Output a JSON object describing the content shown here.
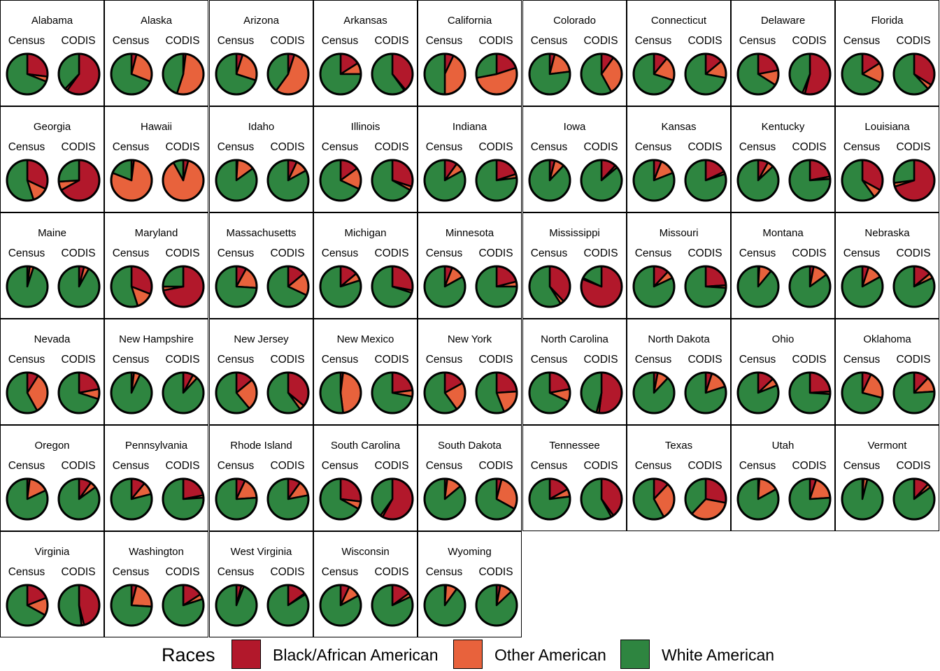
{
  "chart_data": {
    "type": "pie",
    "panel_labels": [
      "Census",
      "CODIS"
    ],
    "legend": {
      "title": "Races",
      "entries": [
        {
          "key": "black",
          "label": "Black/African American",
          "color": "#B2182B"
        },
        {
          "key": "other",
          "label": "Other American",
          "color": "#E8623C"
        },
        {
          "key": "white",
          "label": "White American",
          "color": "#2E8540"
        }
      ]
    },
    "slice_order": [
      "black",
      "other",
      "white"
    ],
    "states": [
      {
        "name": "Alabama",
        "census": {
          "black": 27,
          "other": 4,
          "white": 69
        },
        "codis": {
          "black": 60,
          "other": 2,
          "white": 38
        }
      },
      {
        "name": "Alaska",
        "census": {
          "black": 4,
          "other": 27,
          "white": 69
        },
        "codis": {
          "black": 2,
          "other": 53,
          "white": 45
        }
      },
      {
        "name": "Arizona",
        "census": {
          "black": 5,
          "other": 25,
          "white": 70
        },
        "codis": {
          "black": 5,
          "other": 55,
          "white": 40
        }
      },
      {
        "name": "Arkansas",
        "census": {
          "black": 16,
          "other": 9,
          "white": 75
        },
        "codis": {
          "black": 39,
          "other": 1,
          "white": 60
        }
      },
      {
        "name": "California",
        "census": {
          "black": 7,
          "other": 43,
          "white": 50
        },
        "codis": {
          "black": 20,
          "other": 52,
          "white": 28
        }
      },
      {
        "name": "Colorado",
        "census": {
          "black": 4,
          "other": 19,
          "white": 77
        },
        "codis": {
          "black": 10,
          "other": 32,
          "white": 58
        }
      },
      {
        "name": "Connecticut",
        "census": {
          "black": 11,
          "other": 19,
          "white": 70
        },
        "codis": {
          "black": 14,
          "other": 14,
          "white": 72
        }
      },
      {
        "name": "Delaware",
        "census": {
          "black": 22,
          "other": 12,
          "white": 66
        },
        "codis": {
          "black": 54,
          "other": 2,
          "white": 44
        }
      },
      {
        "name": "Florida",
        "census": {
          "black": 16,
          "other": 16,
          "white": 68
        },
        "codis": {
          "black": 34,
          "other": 4,
          "white": 62
        }
      },
      {
        "name": "Georgia",
        "census": {
          "black": 32,
          "other": 13,
          "white": 55
        },
        "codis": {
          "black": 67,
          "other": 7,
          "white": 26
        }
      },
      {
        "name": "Hawaii",
        "census": {
          "black": 2,
          "other": 79,
          "white": 19
        },
        "codis": {
          "black": 4,
          "other": 88,
          "white": 8
        }
      },
      {
        "name": "Idaho",
        "census": {
          "black": 1,
          "other": 14,
          "white": 85
        },
        "codis": {
          "black": 7,
          "other": 10,
          "white": 83
        }
      },
      {
        "name": "Illinois",
        "census": {
          "black": 15,
          "other": 17,
          "white": 68
        },
        "codis": {
          "black": 30,
          "other": 3,
          "white": 67
        }
      },
      {
        "name": "Indiana",
        "census": {
          "black": 10,
          "other": 7,
          "white": 83
        },
        "codis": {
          "black": 20,
          "other": 3,
          "white": 77
        }
      },
      {
        "name": "Iowa",
        "census": {
          "black": 4,
          "other": 8,
          "white": 88
        },
        "codis": {
          "black": 12,
          "other": 2,
          "white": 86
        }
      },
      {
        "name": "Kansas",
        "census": {
          "black": 6,
          "other": 13,
          "white": 81
        },
        "codis": {
          "black": 18,
          "other": 2,
          "white": 80
        }
      },
      {
        "name": "Kentucky",
        "census": {
          "black": 8,
          "other": 5,
          "white": 87
        },
        "codis": {
          "black": 22,
          "other": 2,
          "white": 76
        }
      },
      {
        "name": "Louisiana",
        "census": {
          "black": 33,
          "other": 7,
          "white": 60
        },
        "codis": {
          "black": 70,
          "other": 3,
          "white": 27
        }
      },
      {
        "name": "Maine",
        "census": {
          "black": 2,
          "other": 3,
          "white": 95
        },
        "codis": {
          "black": 4,
          "other": 4,
          "white": 92
        }
      },
      {
        "name": "Maryland",
        "census": {
          "black": 31,
          "other": 14,
          "white": 55
        },
        "codis": {
          "black": 72,
          "other": 3,
          "white": 25
        }
      },
      {
        "name": "Massachusetts",
        "census": {
          "black": 8,
          "other": 18,
          "white": 74
        },
        "codis": {
          "black": 14,
          "other": 18,
          "white": 68
        }
      },
      {
        "name": "Michigan",
        "census": {
          "black": 14,
          "other": 6,
          "white": 80
        },
        "codis": {
          "black": 28,
          "other": 2,
          "white": 70
        }
      },
      {
        "name": "Minnesota",
        "census": {
          "black": 6,
          "other": 11,
          "white": 83
        },
        "codis": {
          "black": 21,
          "other": 4,
          "white": 75
        }
      },
      {
        "name": "Mississippi",
        "census": {
          "black": 38,
          "other": 3,
          "white": 59
        },
        "codis": {
          "black": 81,
          "other": 1,
          "white": 18
        }
      },
      {
        "name": "Missouri",
        "census": {
          "black": 12,
          "other": 6,
          "white": 82
        },
        "codis": {
          "black": 24,
          "other": 2,
          "white": 74
        }
      },
      {
        "name": "Montana",
        "census": {
          "black": 1,
          "other": 10,
          "white": 89
        },
        "codis": {
          "black": 3,
          "other": 12,
          "white": 85
        }
      },
      {
        "name": "Nebraska",
        "census": {
          "black": 5,
          "other": 12,
          "white": 83
        },
        "codis": {
          "black": 14,
          "other": 4,
          "white": 82
        }
      },
      {
        "name": "Nevada",
        "census": {
          "black": 9,
          "other": 33,
          "white": 58
        },
        "codis": {
          "black": 22,
          "other": 8,
          "white": 70
        }
      },
      {
        "name": "New Hampshire",
        "census": {
          "black": 2,
          "other": 5,
          "white": 93
        },
        "codis": {
          "black": 8,
          "other": 4,
          "white": 88
        }
      },
      {
        "name": "New Jersey",
        "census": {
          "black": 14,
          "other": 25,
          "white": 61
        },
        "codis": {
          "black": 36,
          "other": 4,
          "white": 60
        }
      },
      {
        "name": "New Mexico",
        "census": {
          "black": 2,
          "other": 46,
          "white": 52
        },
        "codis": {
          "black": 23,
          "other": 5,
          "white": 72
        }
      },
      {
        "name": "New York",
        "census": {
          "black": 17,
          "other": 23,
          "white": 60
        },
        "codis": {
          "black": 24,
          "other": 20,
          "white": 56
        }
      },
      {
        "name": "North Carolina",
        "census": {
          "black": 22,
          "other": 10,
          "white": 68
        },
        "codis": {
          "black": 52,
          "other": 2,
          "white": 46
        }
      },
      {
        "name": "North Dakota",
        "census": {
          "black": 3,
          "other": 9,
          "white": 88
        },
        "codis": {
          "black": 5,
          "other": 15,
          "white": 80
        }
      },
      {
        "name": "Ohio",
        "census": {
          "black": 13,
          "other": 6,
          "white": 81
        },
        "codis": {
          "black": 24,
          "other": 2,
          "white": 74
        }
      },
      {
        "name": "Oklahoma",
        "census": {
          "black": 7,
          "other": 22,
          "white": 71
        },
        "codis": {
          "black": 12,
          "other": 12,
          "white": 76
        }
      },
      {
        "name": "Oregon",
        "census": {
          "black": 2,
          "other": 16,
          "white": 82
        },
        "codis": {
          "black": 10,
          "other": 5,
          "white": 85
        }
      },
      {
        "name": "Pennsylvania",
        "census": {
          "black": 11,
          "other": 10,
          "white": 79
        },
        "codis": {
          "black": 22,
          "other": 2,
          "white": 76
        }
      },
      {
        "name": "Rhode Island",
        "census": {
          "black": 7,
          "other": 17,
          "white": 76
        },
        "codis": {
          "black": 10,
          "other": 12,
          "white": 78
        }
      },
      {
        "name": "South Carolina",
        "census": {
          "black": 27,
          "other": 6,
          "white": 67
        },
        "codis": {
          "black": 58,
          "other": 2,
          "white": 40
        }
      },
      {
        "name": "South Dakota",
        "census": {
          "black": 2,
          "other": 12,
          "white": 86
        },
        "codis": {
          "black": 4,
          "other": 29,
          "white": 67
        }
      },
      {
        "name": "Tennessee",
        "census": {
          "black": 17,
          "other": 6,
          "white": 77
        },
        "codis": {
          "black": 40,
          "other": 2,
          "white": 58
        }
      },
      {
        "name": "Texas",
        "census": {
          "black": 12,
          "other": 30,
          "white": 58
        },
        "codis": {
          "black": 28,
          "other": 34,
          "white": 38
        }
      },
      {
        "name": "Utah",
        "census": {
          "black": 1,
          "other": 16,
          "white": 83
        },
        "codis": {
          "black": 5,
          "other": 19,
          "white": 76
        }
      },
      {
        "name": "Vermont",
        "census": {
          "black": 1,
          "other": 3,
          "white": 96
        },
        "codis": {
          "black": 12,
          "other": 3,
          "white": 85
        }
      },
      {
        "name": "Virginia",
        "census": {
          "black": 19,
          "other": 14,
          "white": 67
        },
        "codis": {
          "black": 46,
          "other": 2,
          "white": 52
        }
      },
      {
        "name": "Washington",
        "census": {
          "black": 4,
          "other": 22,
          "white": 74
        },
        "codis": {
          "black": 16,
          "other": 4,
          "white": 80
        }
      },
      {
        "name": "West Virginia",
        "census": {
          "black": 4,
          "other": 2,
          "white": 94
        },
        "codis": {
          "black": 15,
          "other": 1,
          "white": 84
        }
      },
      {
        "name": "Wisconsin",
        "census": {
          "black": 7,
          "other": 10,
          "white": 83
        },
        "codis": {
          "black": 15,
          "other": 3,
          "white": 82
        }
      },
      {
        "name": "Wyoming",
        "census": {
          "black": 1,
          "other": 9,
          "white": 90
        },
        "codis": {
          "black": 3,
          "other": 10,
          "white": 87
        }
      }
    ]
  }
}
